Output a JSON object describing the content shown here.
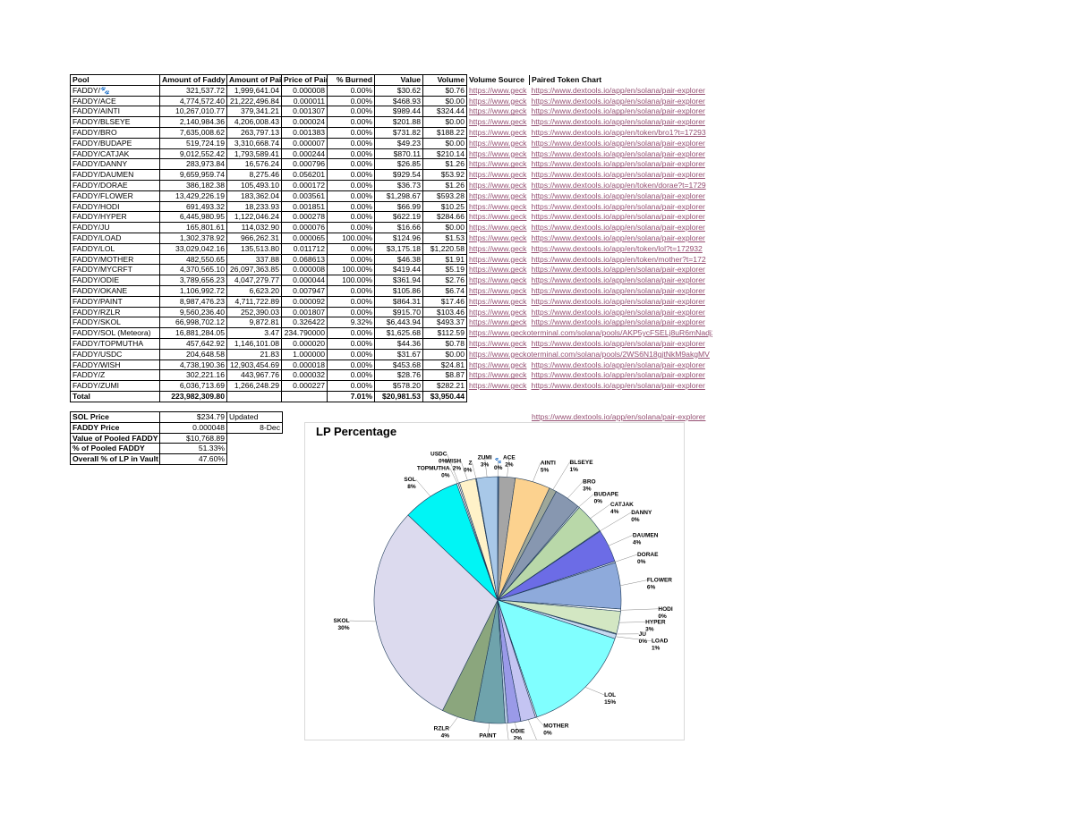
{
  "table": {
    "header": [
      "Pool",
      "Amount of Faddy",
      "Amount of Paire",
      "Price of Paire",
      "% Burned",
      "Value",
      "Volume",
      "Volume Source",
      "Paired Token Chart"
    ],
    "rows": [
      [
        "FADDY/🐾",
        "321,537.72",
        "1,999,641.04",
        "0.000008",
        "0.00%",
        "$30.62",
        "$0.76",
        "https://www.geck",
        "https://www.dextools.io/app/en/solana/pair-explorer"
      ],
      [
        "FADDY/ACE",
        "4,774,572.40",
        "21,222,496.84",
        "0.000011",
        "0.00%",
        "$468.93",
        "$0.00",
        "https://www.geck",
        "https://www.dextools.io/app/en/solana/pair-explorer"
      ],
      [
        "FADDY/AINTI",
        "10,267,010.77",
        "379,341.21",
        "0.001307",
        "0.00%",
        "$989.44",
        "$324.44",
        "https://www.geck",
        "https://www.dextools.io/app/en/solana/pair-explorer"
      ],
      [
        "FADDY/BLSEYE",
        "2,140,984.36",
        "4,206,008.43",
        "0.000024",
        "0.00%",
        "$201.88",
        "$0.00",
        "https://www.geck",
        "https://www.dextools.io/app/en/solana/pair-explorer"
      ],
      [
        "FADDY/BRO",
        "7,635,008.62",
        "263,797.13",
        "0.001383",
        "0.00%",
        "$731.82",
        "$188.22",
        "https://www.geck",
        "https://www.dextools.io/app/en/token/bro1?t=17293"
      ],
      [
        "FADDY/BUDAPE",
        "519,724.19",
        "3,310,668.74",
        "0.000007",
        "0.00%",
        "$49.23",
        "$0.00",
        "https://www.geck",
        "https://www.dextools.io/app/en/solana/pair-explorer"
      ],
      [
        "FADDY/CATJAK",
        "9,012,552.42",
        "1,793,589.41",
        "0.000244",
        "0.00%",
        "$870.11",
        "$210.14",
        "https://www.geck",
        "https://www.dextools.io/app/en/solana/pair-explorer"
      ],
      [
        "FADDY/DANNY",
        "283,973.84",
        "16,576.24",
        "0.000796",
        "0.00%",
        "$26.85",
        "$1.26",
        "https://www.geck",
        "https://www.dextools.io/app/en/solana/pair-explorer"
      ],
      [
        "FADDY/DAUMEN",
        "9,659,959.74",
        "8,275.46",
        "0.056201",
        "0.00%",
        "$929.54",
        "$53.92",
        "https://www.geck",
        "https://www.dextools.io/app/en/solana/pair-explorer"
      ],
      [
        "FADDY/DORAE",
        "386,182.38",
        "105,493.10",
        "0.000172",
        "0.00%",
        "$36.73",
        "$1.26",
        "https://www.geck",
        "https://www.dextools.io/app/en/token/dorae?t=1729"
      ],
      [
        "FADDY/FLOWER",
        "13,429,226.19",
        "183,362.04",
        "0.003561",
        "0.00%",
        "$1,298.67",
        "$593.28",
        "https://www.geck",
        "https://www.dextools.io/app/en/solana/pair-explorer"
      ],
      [
        "FADDY/HODI",
        "691,493.32",
        "18,233.93",
        "0.001851",
        "0.00%",
        "$66.99",
        "$10.25",
        "https://www.geck",
        "https://www.dextools.io/app/en/solana/pair-explorer"
      ],
      [
        "FADDY/HYPER",
        "6,445,980.95",
        "1,122,046.24",
        "0.000278",
        "0.00%",
        "$622.19",
        "$284.66",
        "https://www.geck",
        "https://www.dextools.io/app/en/solana/pair-explorer"
      ],
      [
        "FADDY/JU",
        "165,801.61",
        "114,032.90",
        "0.000076",
        "0.00%",
        "$16.66",
        "$0.00",
        "https://www.geck",
        "https://www.dextools.io/app/en/solana/pair-explorer"
      ],
      [
        "FADDY/LOAD",
        "1,302,378.92",
        "966,262.31",
        "0.000065",
        "100.00%",
        "$124.96",
        "$1.53",
        "https://www.geck",
        "https://www.dextools.io/app/en/solana/pair-explorer"
      ],
      [
        "FADDY/LOL",
        "33,029,042.16",
        "135,513.80",
        "0.011712",
        "0.00%",
        "$3,175.18",
        "$1,220.58",
        "https://www.geck",
        "https://www.dextools.io/app/en/token/lol?t=172932"
      ],
      [
        "FADDY/MOTHER",
        "482,550.65",
        "337.88",
        "0.068613",
        "0.00%",
        "$46.38",
        "$1.91",
        "https://www.geck",
        "https://www.dextools.io/app/en/token/mother?t=172"
      ],
      [
        "FADDY/MYCRFT",
        "4,370,565.10",
        "26,097,363.85",
        "0.000008",
        "100.00%",
        "$419.44",
        "$5.19",
        "https://www.geck",
        "https://www.dextools.io/app/en/solana/pair-explorer"
      ],
      [
        "FADDY/ODIE",
        "3,789,656.23",
        "4,047,279.77",
        "0.000044",
        "100.00%",
        "$361.94",
        "$2.76",
        "https://www.geck",
        "https://www.dextools.io/app/en/solana/pair-explorer"
      ],
      [
        "FADDY/OKANE",
        "1,106,992.72",
        "6,623.20",
        "0.007947",
        "0.00%",
        "$105.86",
        "$6.74",
        "https://www.geck",
        "https://www.dextools.io/app/en/solana/pair-explorer"
      ],
      [
        "FADDY/PAINT",
        "8,987,476.23",
        "4,711,722.89",
        "0.000092",
        "0.00%",
        "$864.31",
        "$17.46",
        "https://www.geck",
        "https://www.dextools.io/app/en/solana/pair-explorer"
      ],
      [
        "FADDY/RZLR",
        "9,560,236.40",
        "252,390.03",
        "0.001807",
        "0.00%",
        "$915.70",
        "$103.46",
        "https://www.geck",
        "https://www.dextools.io/app/en/solana/pair-explorer"
      ],
      [
        "FADDY/SKOL",
        "66,998,702.12",
        "9,872.81",
        "0.326422",
        "9.32%",
        "$6,443.94",
        "$493.37",
        "https://www.geck",
        "https://www.dextools.io/app/en/solana/pair-explorer"
      ],
      [
        "FADDY/SOL (Meteora)",
        "16,881,284.05",
        "3.47",
        "234.790000",
        "0.00%",
        "$1,625.68",
        "$112.59",
        "https://www.geckoterminal.com/solana/pools/AKP5ycFSELj8uR6mNadj2I"
      ],
      [
        "FADDY/TOPMUTHA",
        "457,642.92",
        "1,146,101.08",
        "0.000020",
        "0.00%",
        "$44.36",
        "$0.78",
        "https://www.geck",
        "https://www.dextools.io/app/en/solana/pair-explorer"
      ],
      [
        "FADDY/USDC",
        "204,648.58",
        "21.83",
        "1.000000",
        "0.00%",
        "$31.67",
        "$0.00",
        "https://www.geckoterminal.com/solana/pools/2WS6N18gjtNkM9akgMV"
      ],
      [
        "FADDY/WISH",
        "4,738,190.36",
        "12,903,454.69",
        "0.000018",
        "0.00%",
        "$453.68",
        "$24.81",
        "https://www.geck",
        "https://www.dextools.io/app/en/solana/pair-explorer"
      ],
      [
        "FADDY/Z",
        "302,221.16",
        "443,967.76",
        "0.000032",
        "0.00%",
        "$28.76",
        "$8.87",
        "https://www.geck",
        "https://www.dextools.io/app/en/solana/pair-explorer"
      ],
      [
        "FADDY/ZUMI",
        "6,036,713.69",
        "1,266,248.29",
        "0.000227",
        "0.00%",
        "$578.20",
        "$282.21",
        "https://www.geck",
        "https://www.dextools.io/app/en/solana/pair-explorer"
      ]
    ],
    "total": {
      "label": "Total",
      "faddy": "223,982,309.80",
      "burned": "7.01%",
      "value": "$20,981.53",
      "volume": "$3,950.44"
    }
  },
  "summary": {
    "rows": [
      [
        "SOL Price",
        "$234.79",
        "Updated"
      ],
      [
        "FADDY Price",
        "0.000048",
        "8-Dec"
      ],
      [
        "Value of Pooled FADDY",
        "$10,768.89"
      ],
      [
        "% of Pooled FADDY",
        "51.33%"
      ],
      [
        "Overall % of LP in Vault",
        "47.60%"
      ]
    ],
    "link": "https://www.dextools.io/app/en/solana/pair-explorer"
  },
  "chart_data": {
    "type": "pie",
    "title": "LP Percentage",
    "categories": [
      "🐾",
      "ACE",
      "AINTI",
      "BLSEYE",
      "BRO",
      "BUDAPE",
      "CATJAK",
      "DANNY",
      "DAUMEN",
      "DORAE",
      "FLOWER",
      "HODI",
      "HYPER",
      "JU",
      "LOAD",
      "LOL",
      "MOTHER",
      "MYCRFT",
      "ODIE",
      "OKANE",
      "PAINT",
      "RZLR",
      "SKOL",
      "SOL",
      "TOPMUTHA",
      "USDC",
      "WISH",
      "Z",
      "ZUMI"
    ],
    "values": [
      0.15,
      2.2,
      4.7,
      1.0,
      3.5,
      0.2,
      4.1,
      0.1,
      4.4,
      0.2,
      6.2,
      0.3,
      3.0,
      0.1,
      0.6,
      15.1,
      0.2,
      2.0,
      1.7,
      0.4,
      4.1,
      4.4,
      30.4,
      7.7,
      0.2,
      0.2,
      2.2,
      0.1,
      2.8
    ],
    "value_labels": [
      "0%",
      "2%",
      "5%",
      "1%",
      "3%",
      "0%",
      "4%",
      "0%",
      "4%",
      "0%",
      "6%",
      "0%",
      "3%",
      "0%",
      "1%",
      "15%",
      "0%",
      "2%",
      "2%",
      "0%",
      "4%",
      "4%",
      "30%",
      "8%",
      "0%",
      "0%",
      "2%",
      "0%",
      "3%"
    ],
    "colors": [
      "#4f81bd",
      "#a5a5a5",
      "#fcd28f",
      "#9ea79a",
      "#8797b0",
      "#e6eef8",
      "#b9d8a9",
      "#f2f2f2",
      "#6c6ce6",
      "#dfe8f5",
      "#8eaadb",
      "#ffffff",
      "#d3e7c3",
      "#f0f0f0",
      "#c6d9f0",
      "#80ffff",
      "#eaeaf5",
      "#c4c4f2",
      "#9a9ae8",
      "#b6c9e0",
      "#6fa3ac",
      "#8ba67d",
      "#dcdaee",
      "#00f5f5",
      "#ffffff",
      "#f5f5f5",
      "#fff2c8",
      "#e0e0e0",
      "#a8c8e8"
    ]
  }
}
